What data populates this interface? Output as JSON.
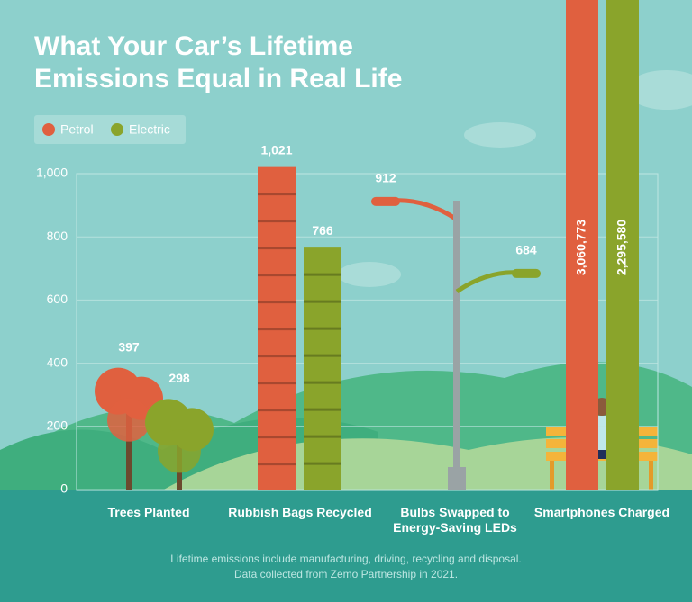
{
  "chart_data": {
    "type": "bar",
    "title": "What Your Car’s Lifetime Emissions Equal in Real Life",
    "categories": [
      "Trees Planted",
      "Rubbish Bags Recycled",
      "Bulbs Swapped to Energy-Saving LEDs",
      "Smartphones Charged"
    ],
    "series": [
      {
        "name": "Petrol",
        "color": "#e0603f",
        "values": [
          397,
          1021,
          912,
          3060773
        ],
        "value_labels": [
          "397",
          "1,021",
          "912",
          "3,060,773"
        ]
      },
      {
        "name": "Electric",
        "color": "#8aa42b",
        "values": [
          298,
          766,
          684,
          2295580
        ],
        "value_labels": [
          "298",
          "766",
          "684",
          "2,295,580"
        ]
      }
    ],
    "ylim": [
      0,
      1000
    ],
    "yticks": [
      0,
      200,
      400,
      600,
      800,
      {
        "value": 1000,
        "label": "1,000"
      }
    ],
    "grid": true,
    "legend": "top-left",
    "notes": [
      "Lifetime emissions include manufacturing, driving, recycling and disposal.",
      "Data collected from Zemo Partnership in 2021."
    ]
  }
}
